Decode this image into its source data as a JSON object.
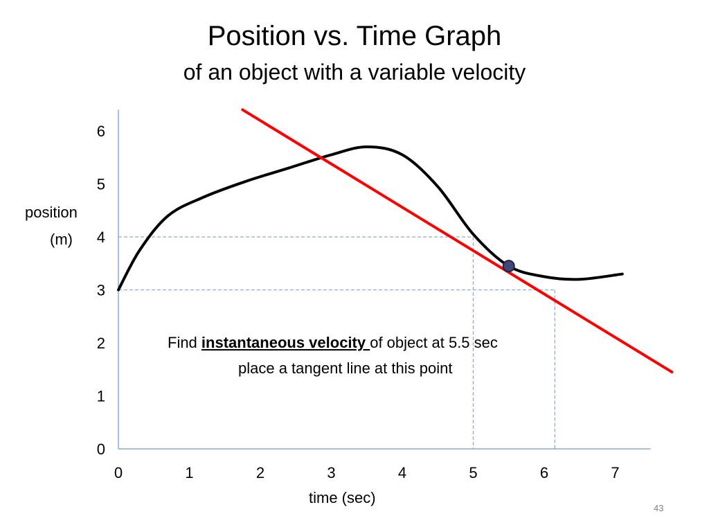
{
  "slide": {
    "number": "43"
  },
  "chart_data": {
    "type": "line",
    "title": "Position vs. Time Graph",
    "subtitle": "of an object with a variable velocity",
    "xlabel": "time  (sec)",
    "ylabel_line1": "position",
    "ylabel_line2": "(m)",
    "xlim": [
      0,
      7.5
    ],
    "ylim": [
      0,
      6.4
    ],
    "x_ticks": [
      "0",
      "1",
      "2",
      "3",
      "4",
      "5",
      "6",
      "7"
    ],
    "y_ticks": [
      "0",
      "1",
      "2",
      "3",
      "4",
      "5",
      "6"
    ],
    "grid": false,
    "series": [
      {
        "name": "position curve",
        "color": "#000000",
        "x": [
          0,
          0.3,
          0.7,
          1.2,
          1.8,
          2.4,
          3.0,
          3.5,
          4.0,
          4.5,
          5.0,
          5.5,
          6.0,
          6.5,
          7.1
        ],
        "y": [
          3.0,
          3.75,
          4.4,
          4.75,
          5.05,
          5.3,
          5.55,
          5.7,
          5.55,
          4.95,
          4.05,
          3.45,
          3.25,
          3.2,
          3.3
        ]
      },
      {
        "name": "tangent line",
        "color": "#ff0000",
        "x": [
          1.75,
          7.8
        ],
        "y": [
          6.4,
          1.45
        ]
      }
    ],
    "highlight_point": {
      "x": 5.5,
      "y": 3.45,
      "color": "#404878"
    },
    "guides": [
      {
        "x": 5,
        "y": 4,
        "color": "#8eaadb"
      },
      {
        "x": 6.15,
        "y": 3,
        "color": "#8eaadb"
      }
    ],
    "annotation": {
      "prefix": "Find ",
      "emphasis": "instantaneous velocity ",
      "suffix": "of object at 5.5 sec",
      "line2": "place a tangent line at this point"
    }
  }
}
